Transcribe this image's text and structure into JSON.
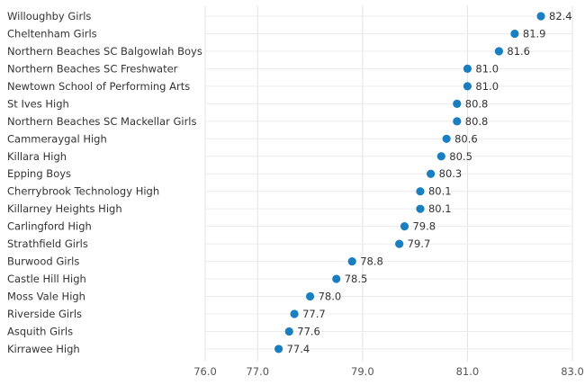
{
  "chart_data": {
    "type": "scatter",
    "orientation": "horizontal",
    "title": "",
    "xlabel": "",
    "ylabel": "",
    "xlim": [
      76.0,
      83.0
    ],
    "x_ticks": [
      "76.0",
      "77.0",
      "79.0",
      "81.0",
      "83.0"
    ],
    "grid": true,
    "point_color": "#1a7fc1",
    "categories": [
      "Willoughby Girls",
      "Cheltenham Girls",
      "Northern Beaches SC Balgowlah Boys",
      "Northern Beaches SC Freshwater",
      "Newtown School of Performing Arts",
      "St Ives High",
      "Northern Beaches SC Mackellar Girls",
      "Cammeraygal High",
      "Killara High",
      "Epping Boys",
      "Cherrybrook Technology High",
      "Killarney Heights High",
      "Carlingford High",
      "Strathfield Girls",
      "Burwood Girls",
      "Castle Hill High",
      "Moss Vale High",
      "Riverside Girls",
      "Asquith Girls",
      "Kirrawee High"
    ],
    "values": [
      82.4,
      81.9,
      81.6,
      81.0,
      81.0,
      80.8,
      80.8,
      80.6,
      80.5,
      80.3,
      80.1,
      80.1,
      79.8,
      79.7,
      78.8,
      78.5,
      78.0,
      77.7,
      77.6,
      77.4
    ],
    "value_labels": [
      "82.4",
      "81.9",
      "81.6",
      "81.0",
      "81.0",
      "80.8",
      "80.8",
      "80.6",
      "80.5",
      "80.3",
      "80.1",
      "80.1",
      "79.8",
      "79.7",
      "78.8",
      "78.5",
      "78.0",
      "77.7",
      "77.6",
      "77.4"
    ]
  }
}
